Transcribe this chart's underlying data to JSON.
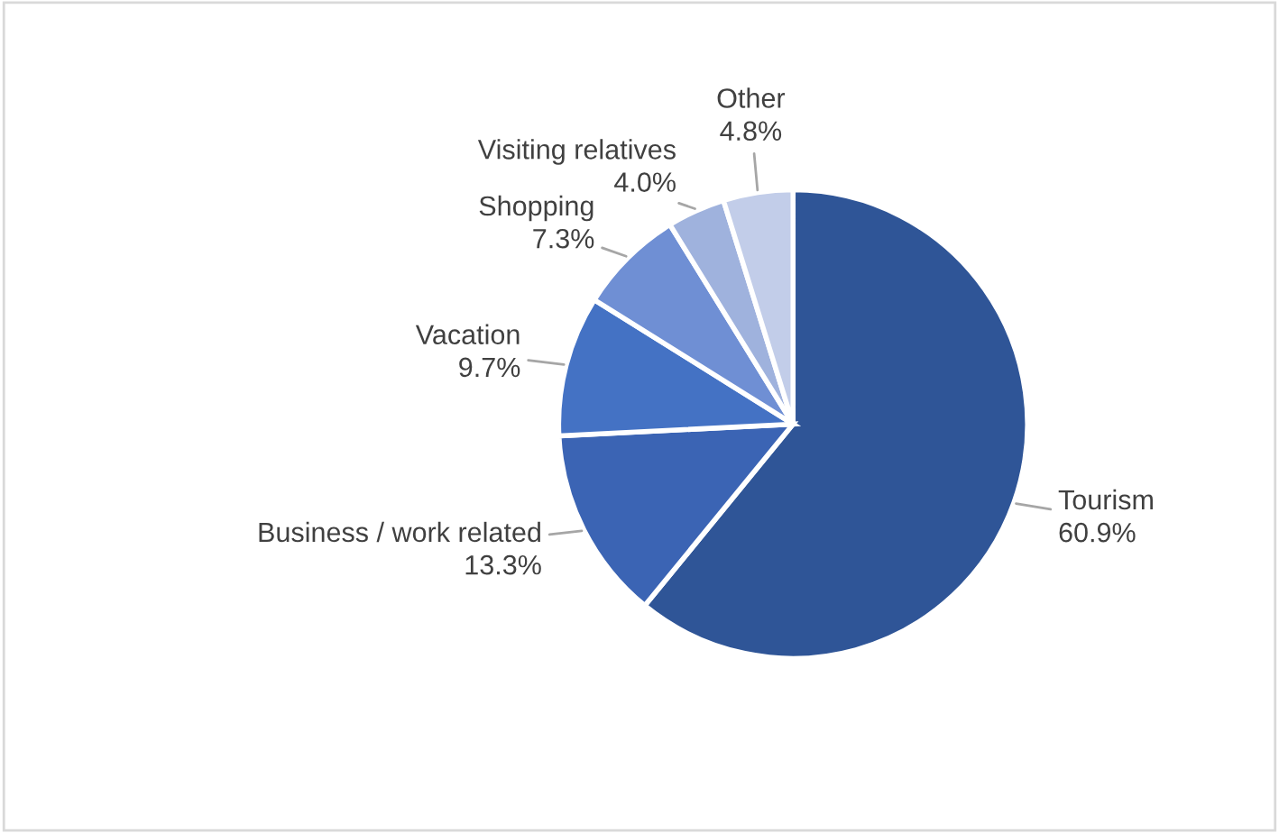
{
  "chart_data": {
    "type": "pie",
    "categories": [
      "Tourism",
      "Business / work related",
      "Vacation",
      "Shopping",
      "Visiting relatives",
      "Other"
    ],
    "values": [
      60.9,
      13.3,
      9.7,
      7.3,
      4.0,
      4.8
    ],
    "value_labels": [
      "60.9%",
      "13.3%",
      "9.7%",
      "7.3%",
      "4.0%",
      "4.8%"
    ],
    "colors": [
      "#2f5597",
      "#3b64b4",
      "#4472c4",
      "#6f8fd4",
      "#9fb2dd",
      "#c2cde9"
    ],
    "legend": false
  }
}
